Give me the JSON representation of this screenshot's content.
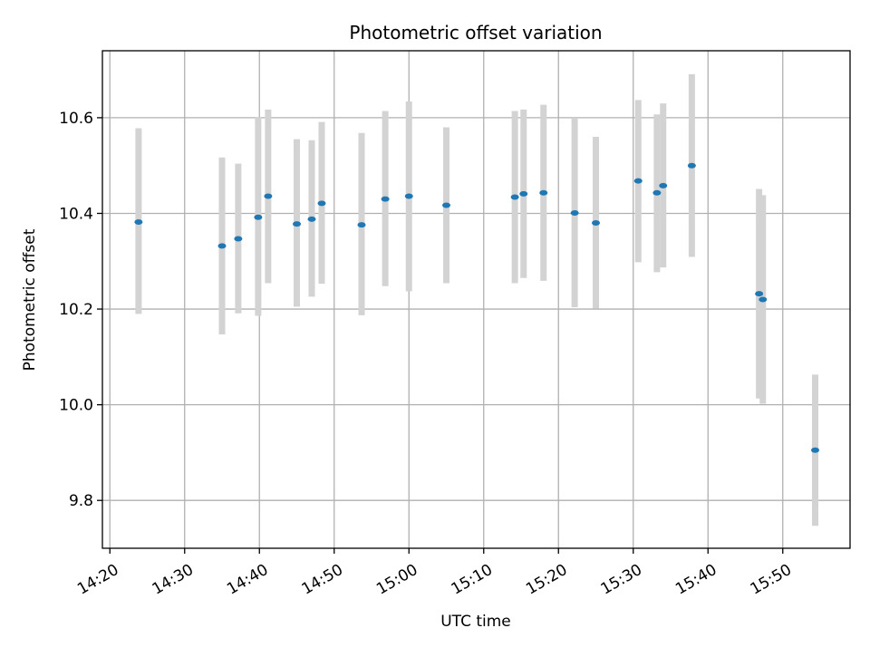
{
  "chart_data": {
    "type": "scatter",
    "title": "Photometric offset variation",
    "xlabel": "UTC time",
    "ylabel": "Photometric offset",
    "x_tick_labels": [
      "14:20",
      "14:30",
      "14:40",
      "14:50",
      "15:00",
      "15:10",
      "15:20",
      "15:30",
      "15:40",
      "15:50"
    ],
    "y_tick_labels": [
      "9.8",
      "10.0",
      "10.2",
      "10.4",
      "10.6"
    ],
    "xlim": [
      "14:19",
      "15:59"
    ],
    "ylim": [
      9.7,
      10.74
    ],
    "grid": true,
    "colors": {
      "point": "#1f77b4",
      "errorbar": "#d3d3d3",
      "grid": "#b0b0b0"
    },
    "series": [
      {
        "points": [
          {
            "x": "14:23:50",
            "y": 10.382,
            "lo": 10.19,
            "hi": 10.578
          },
          {
            "x": "14:35:00",
            "y": 10.332,
            "lo": 10.147,
            "hi": 10.517
          },
          {
            "x": "14:37:10",
            "y": 10.347,
            "lo": 10.191,
            "hi": 10.504
          },
          {
            "x": "14:39:50",
            "y": 10.392,
            "lo": 10.186,
            "hi": 10.601
          },
          {
            "x": "14:41:10",
            "y": 10.436,
            "lo": 10.254,
            "hi": 10.617
          },
          {
            "x": "14:45:00",
            "y": 10.378,
            "lo": 10.205,
            "hi": 10.555
          },
          {
            "x": "14:47:00",
            "y": 10.388,
            "lo": 10.226,
            "hi": 10.553
          },
          {
            "x": "14:48:20",
            "y": 10.421,
            "lo": 10.253,
            "hi": 10.591
          },
          {
            "x": "14:53:40",
            "y": 10.376,
            "lo": 10.187,
            "hi": 10.568
          },
          {
            "x": "14:56:50",
            "y": 10.43,
            "lo": 10.248,
            "hi": 10.614
          },
          {
            "x": "15:00:00",
            "y": 10.436,
            "lo": 10.237,
            "hi": 10.634
          },
          {
            "x": "15:05:00",
            "y": 10.417,
            "lo": 10.254,
            "hi": 10.58
          },
          {
            "x": "15:14:10",
            "y": 10.434,
            "lo": 10.254,
            "hi": 10.614
          },
          {
            "x": "15:15:20",
            "y": 10.441,
            "lo": 10.265,
            "hi": 10.617
          },
          {
            "x": "15:18:00",
            "y": 10.443,
            "lo": 10.259,
            "hi": 10.627
          },
          {
            "x": "15:22:10",
            "y": 10.401,
            "lo": 10.204,
            "hi": 10.6
          },
          {
            "x": "15:25:00",
            "y": 10.38,
            "lo": 10.201,
            "hi": 10.56
          },
          {
            "x": "15:30:40",
            "y": 10.468,
            "lo": 10.298,
            "hi": 10.637
          },
          {
            "x": "15:33:10",
            "y": 10.443,
            "lo": 10.277,
            "hi": 10.607
          },
          {
            "x": "15:34:00",
            "y": 10.458,
            "lo": 10.287,
            "hi": 10.63
          },
          {
            "x": "15:37:50",
            "y": 10.5,
            "lo": 10.309,
            "hi": 10.691
          },
          {
            "x": "15:46:50",
            "y": 10.232,
            "lo": 10.013,
            "hi": 10.451
          },
          {
            "x": "15:47:20",
            "y": 10.22,
            "lo": 10.002,
            "hi": 10.438
          },
          {
            "x": "15:54:20",
            "y": 9.905,
            "lo": 9.747,
            "hi": 10.063
          }
        ]
      }
    ]
  }
}
